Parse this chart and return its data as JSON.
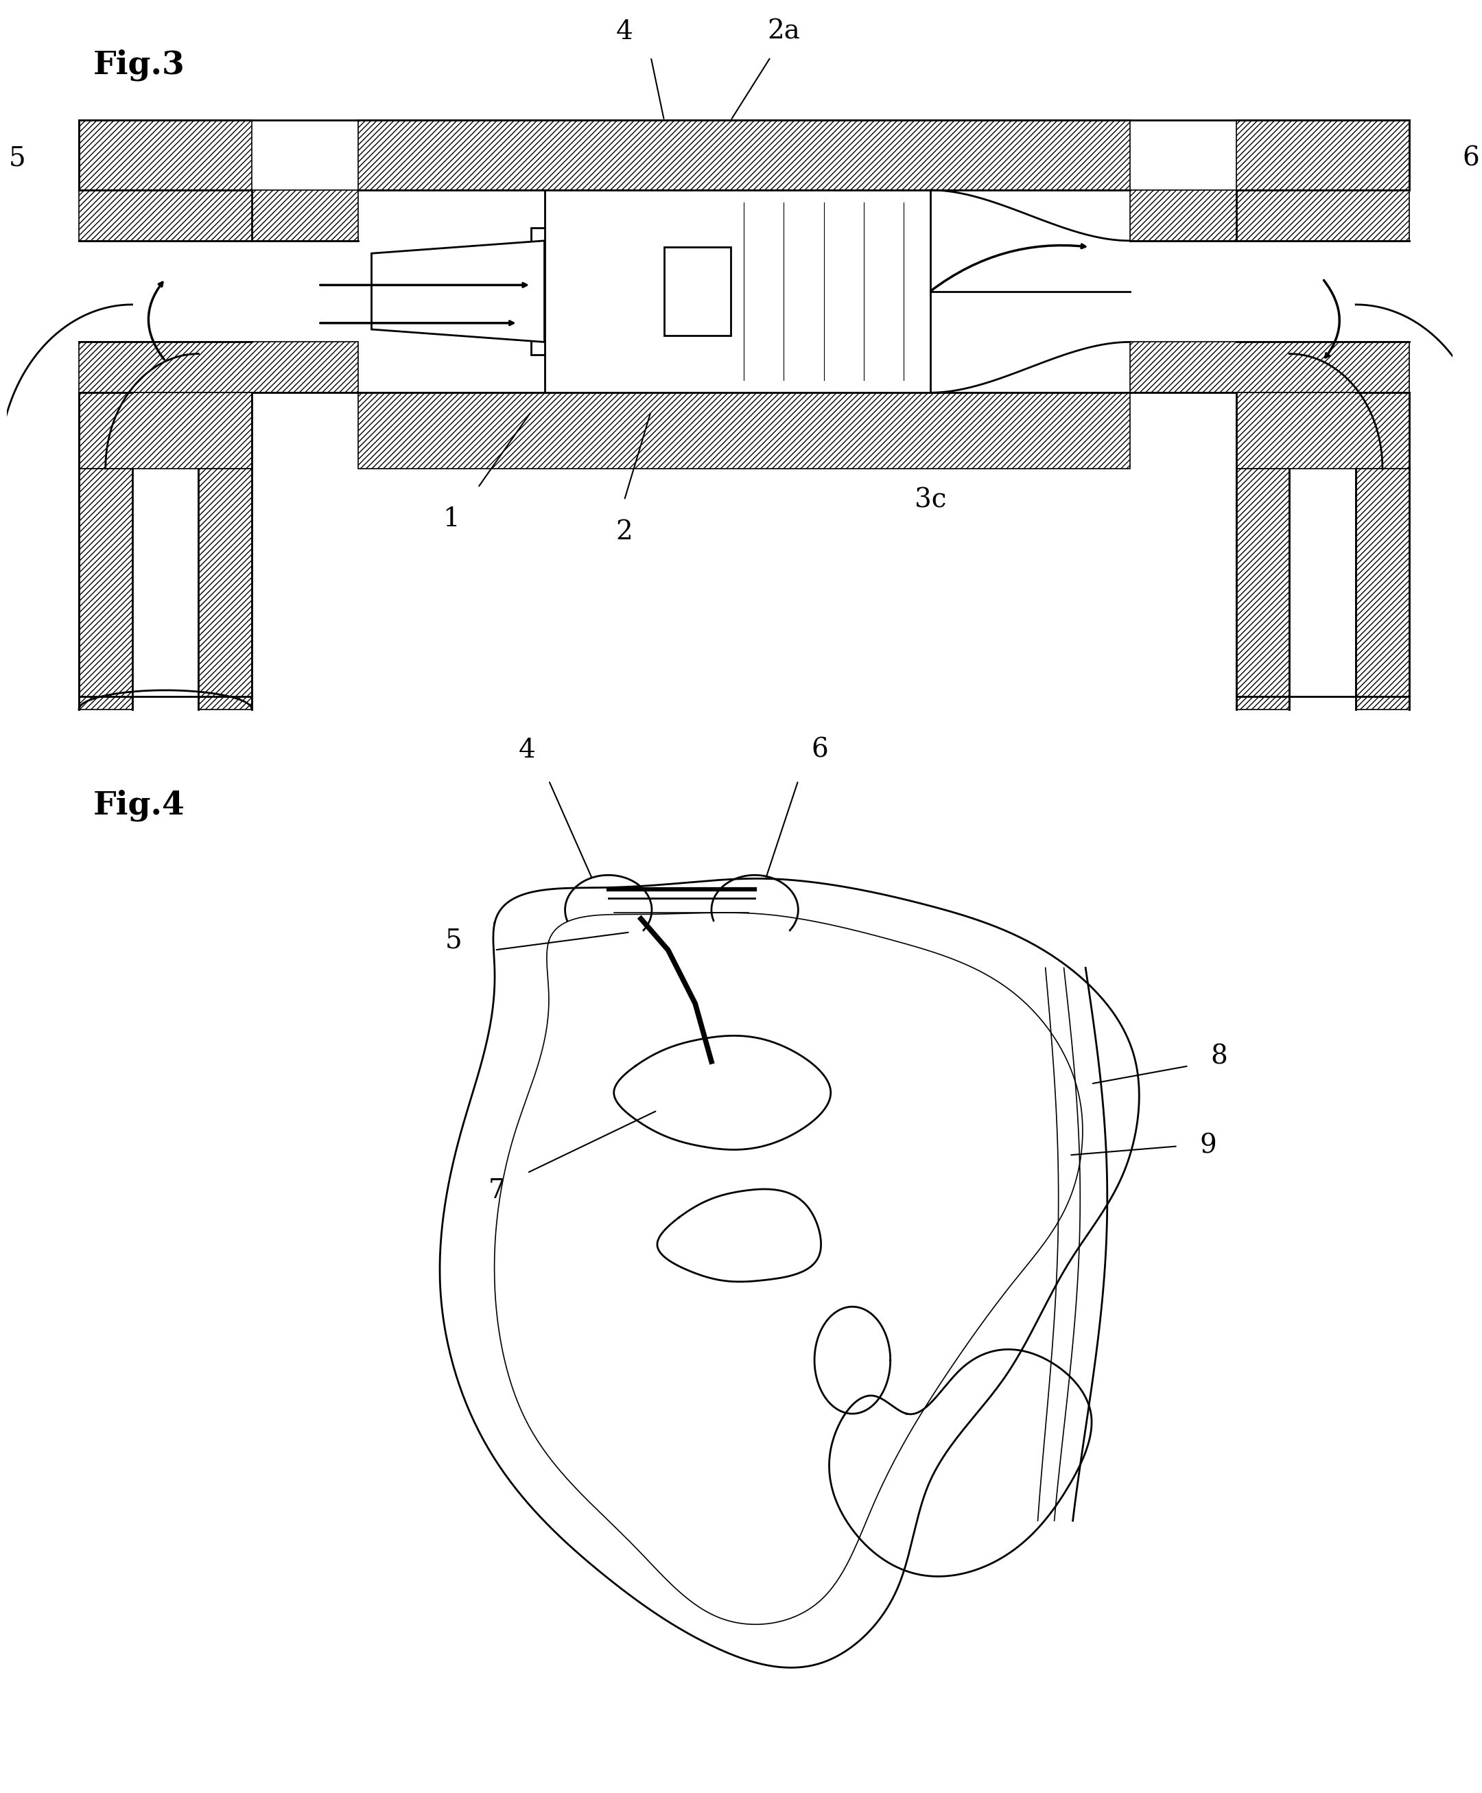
{
  "fig3_label": "Fig.3",
  "fig4_label": "Fig.4",
  "bg_color": "#ffffff",
  "line_color": "#000000",
  "fig3_region": [
    0.05,
    0.97,
    0.605,
    0.96
  ],
  "fig4_region": [
    0.15,
    0.9,
    0.02,
    0.52
  ]
}
